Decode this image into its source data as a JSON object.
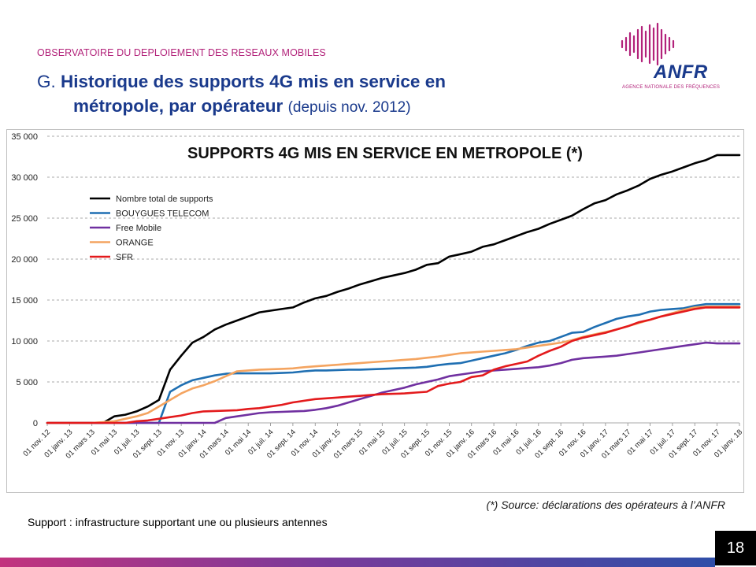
{
  "header": {
    "kicker": "OBSERVATOIRE DU DEPLOIEMENT DES RESEAUX MOBILES",
    "title_prefix": "G.",
    "title_line1": "Historique des supports 4G mis en service en",
    "title_line2": "métropole, par opérateur",
    "title_sub": "(depuis nov. 2012)"
  },
  "logo": {
    "name": "ANFR",
    "tagline": "AGENCE NATIONALE DES FRÉQUENCES",
    "accent": "#b2227a",
    "brand": "#1a3a8c"
  },
  "footer": {
    "source": "(*) Source: déclarations des opérateurs à l’ANFR",
    "note": "Support : infrastructure supportant une ou plusieurs antennes",
    "page_number": "18"
  },
  "chart_data": {
    "type": "line",
    "title": "SUPPORTS 4G MIS EN SERVICE EN METROPOLE (*)",
    "xlabel": "",
    "ylabel": "",
    "ylim": [
      0,
      35000
    ],
    "yticks": [
      "0",
      "5 000",
      "10 000",
      "15 000",
      "20 000",
      "25 000",
      "30 000",
      "35 000"
    ],
    "grid": "horizontal dashed",
    "legend_position": "top-left",
    "x_tick_labels": [
      "01 nov. 12",
      "01 janv. 13",
      "01 mars 13",
      "01 mai 13",
      "01 juil. 13",
      "01 sept. 13",
      "01 nov. 13",
      "01 janv. 14",
      "01 mars 14",
      "01 mai 14",
      "01 juil. 14",
      "01 sept. 14",
      "01 nov. 14",
      "01 janv. 15",
      "01 mars 15",
      "01 mai 15",
      "01 juil. 15",
      "01 sept. 15",
      "01 nov. 15",
      "01 janv. 16",
      "01 mars 16",
      "01 mai 16",
      "01 juil. 16",
      "01 sept. 16",
      "01 nov. 16",
      "01 janv. 17",
      "01 mars 17",
      "01 mai 17",
      "01 juil. 17",
      "01 sept. 17",
      "01 nov. 17",
      "01 janv. 18"
    ],
    "x": [
      0,
      1,
      2,
      3,
      4,
      5,
      6,
      7,
      8,
      9,
      10,
      11,
      12,
      13,
      14,
      15,
      16,
      17,
      18,
      19,
      20,
      21,
      22,
      23,
      24,
      25,
      26,
      27,
      28,
      29,
      30,
      31,
      32,
      33,
      34,
      35,
      36,
      37,
      38,
      39,
      40,
      41,
      42,
      43,
      44,
      45,
      46,
      47,
      48,
      49,
      50,
      51,
      52,
      53,
      54,
      55,
      56,
      57,
      58,
      59,
      60,
      61,
      62
    ],
    "series": [
      {
        "name": "Nombre total de supports",
        "color": "#000000",
        "values": [
          0,
          0,
          0,
          0,
          0,
          0,
          800,
          1000,
          1400,
          2000,
          2800,
          6500,
          8200,
          9800,
          10500,
          11400,
          12000,
          12500,
          13000,
          13500,
          13700,
          13900,
          14100,
          14700,
          15200,
          15500,
          16000,
          16400,
          16900,
          17300,
          17700,
          18000,
          18300,
          18700,
          19300,
          19500,
          20300,
          20600,
          20900,
          21500,
          21800,
          22300,
          22800,
          23300,
          23700,
          24300,
          24800,
          25300,
          26100,
          26800,
          27200,
          27900,
          28400,
          29000,
          29800,
          30300,
          30700,
          31200,
          31700,
          32100,
          32700,
          32700,
          32700
        ]
      },
      {
        "name": "BOUYGUES TELECOM",
        "color": "#1f6fb2",
        "values": [
          0,
          0,
          0,
          0,
          0,
          0,
          0,
          0,
          0,
          0,
          0,
          3800,
          4600,
          5200,
          5500,
          5800,
          6000,
          6050,
          6050,
          6050,
          6050,
          6100,
          6150,
          6300,
          6400,
          6400,
          6450,
          6500,
          6500,
          6550,
          6600,
          6650,
          6700,
          6750,
          6850,
          7050,
          7200,
          7300,
          7600,
          7900,
          8200,
          8500,
          8900,
          9400,
          9800,
          10000,
          10500,
          11000,
          11100,
          11700,
          12200,
          12700,
          13000,
          13200,
          13600,
          13800,
          13900,
          14000,
          14300,
          14500,
          14500,
          14500,
          14500
        ]
      },
      {
        "name": "Free Mobile",
        "color": "#7030a0",
        "values": [
          0,
          0,
          0,
          0,
          0,
          0,
          0,
          0,
          0,
          0,
          0,
          0,
          0,
          0,
          0,
          0,
          600,
          800,
          1000,
          1200,
          1300,
          1350,
          1400,
          1450,
          1600,
          1800,
          2100,
          2500,
          2900,
          3300,
          3700,
          4000,
          4300,
          4700,
          5000,
          5300,
          5700,
          5900,
          6100,
          6300,
          6400,
          6500,
          6600,
          6700,
          6800,
          7000,
          7300,
          7700,
          7900,
          8000,
          8100,
          8200,
          8400,
          8600,
          8800,
          9000,
          9200,
          9400,
          9600,
          9800,
          9700,
          9700,
          9700
        ]
      },
      {
        "name": "ORANGE",
        "color": "#f4a460",
        "values": [
          0,
          0,
          0,
          0,
          0,
          100,
          200,
          500,
          800,
          1200,
          2000,
          2800,
          3600,
          4200,
          4600,
          5100,
          5700,
          6300,
          6400,
          6500,
          6550,
          6600,
          6650,
          6800,
          6900,
          7000,
          7100,
          7200,
          7300,
          7400,
          7500,
          7600,
          7700,
          7800,
          7950,
          8100,
          8300,
          8500,
          8600,
          8700,
          8800,
          8900,
          9000,
          9200,
          9400,
          9600,
          9800,
          10100,
          10500,
          10800,
          11100,
          11400,
          11800,
          12200,
          12600,
          13000,
          13400,
          13800,
          14100,
          14200,
          14200,
          14200,
          14200
        ]
      },
      {
        "name": "SFR",
        "color": "#e31a1c",
        "values": [
          0,
          0,
          0,
          0,
          0,
          0,
          0,
          0,
          200,
          300,
          500,
          700,
          900,
          1200,
          1400,
          1450,
          1500,
          1550,
          1700,
          1800,
          2000,
          2200,
          2500,
          2700,
          2900,
          3000,
          3100,
          3200,
          3300,
          3400,
          3500,
          3550,
          3600,
          3700,
          3800,
          4500,
          4800,
          5000,
          5600,
          5800,
          6500,
          6900,
          7200,
          7500,
          8200,
          8800,
          9300,
          10000,
          10400,
          10700,
          11000,
          11400,
          11800,
          12300,
          12600,
          13000,
          13300,
          13600,
          13900,
          14100,
          14100,
          14100,
          14100
        ]
      }
    ]
  }
}
